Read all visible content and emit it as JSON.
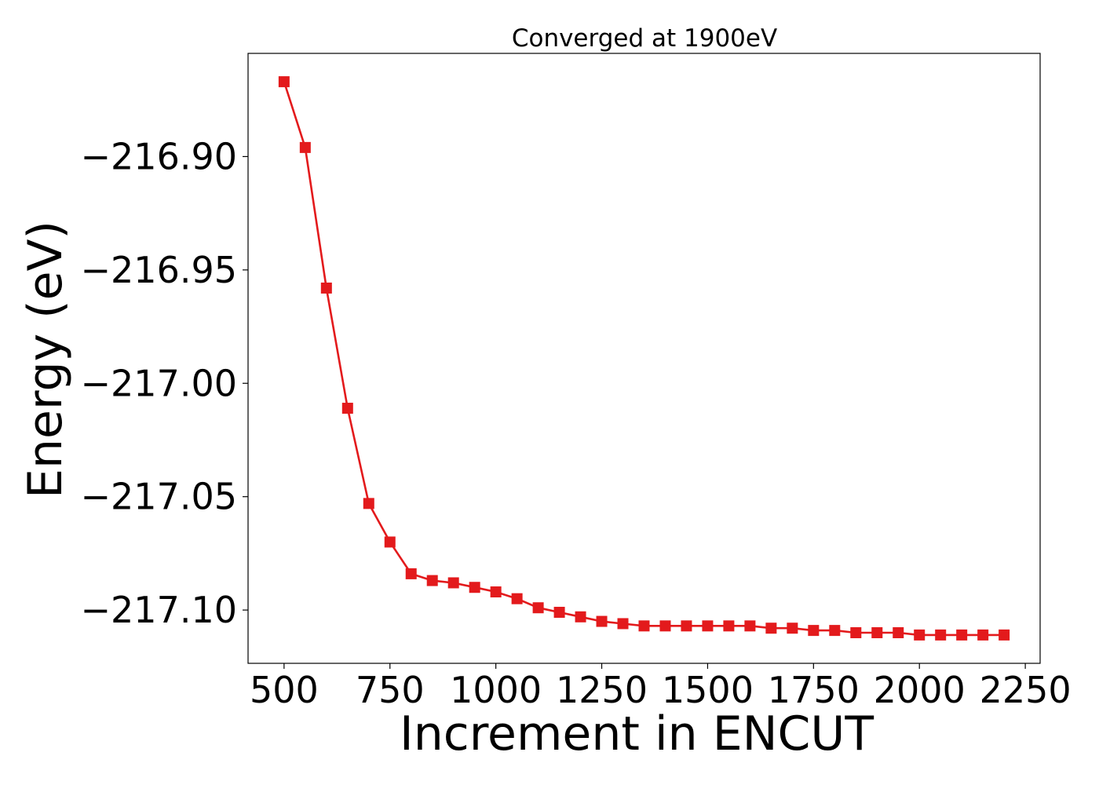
{
  "chart_data": {
    "type": "line",
    "title": "Converged at 1900eV",
    "xlabel": "Increment in ENCUT",
    "ylabel": "Energy (eV)",
    "xlim": [
      415,
      2285
    ],
    "ylim": [
      -217.1235,
      -216.8545
    ],
    "xticks": [
      500,
      750,
      1000,
      1250,
      1500,
      1750,
      2000,
      2250
    ],
    "xtick_labels": [
      "500",
      "750",
      "1000",
      "1250",
      "1500",
      "1750",
      "2000",
      "2250"
    ],
    "yticks": [
      -216.9,
      -216.95,
      -217.0,
      -217.05,
      -217.1
    ],
    "ytick_labels": [
      "−216.90",
      "−216.95",
      "−217.00",
      "−217.05",
      "−217.10"
    ],
    "grid": false,
    "legend": "none",
    "series": [
      {
        "color": "#e31a1c",
        "marker": "square",
        "x": [
          500,
          550,
          600,
          650,
          700,
          750,
          800,
          850,
          900,
          950,
          1000,
          1050,
          1100,
          1150,
          1200,
          1250,
          1300,
          1350,
          1400,
          1450,
          1500,
          1550,
          1600,
          1650,
          1700,
          1750,
          1800,
          1850,
          1900,
          1950,
          2000,
          2050,
          2100,
          2150,
          2200
        ],
        "y": [
          -216.867,
          -216.896,
          -216.958,
          -217.011,
          -217.053,
          -217.07,
          -217.084,
          -217.087,
          -217.088,
          -217.09,
          -217.092,
          -217.095,
          -217.099,
          -217.101,
          -217.103,
          -217.105,
          -217.106,
          -217.107,
          -217.107,
          -217.107,
          -217.107,
          -217.107,
          -217.107,
          -217.108,
          -217.108,
          -217.109,
          -217.109,
          -217.11,
          -217.11,
          -217.11,
          -217.111,
          -217.111,
          -217.111,
          -217.111,
          -217.111
        ]
      }
    ]
  }
}
